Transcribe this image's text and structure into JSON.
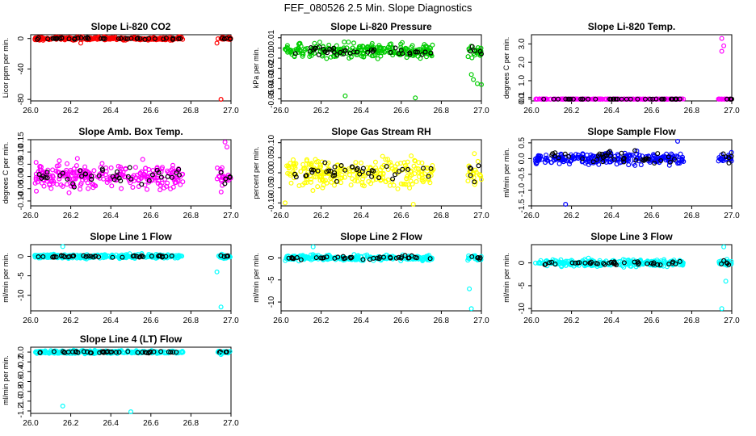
{
  "figure_title": "FEF_080526  2.5 Min. Slope Diagnostics",
  "chart_data": [
    {
      "id": "co2",
      "type": "scatter",
      "title": "Slope Li-820 CO2",
      "ylabel": "Licor ppm per min.",
      "xlim": [
        26.0,
        27.0
      ],
      "ylim": [
        -82,
        5
      ],
      "yticks": [
        0,
        -40,
        -80
      ],
      "ytick_labels": [
        "0",
        "-40",
        "-80"
      ],
      "xticks": [
        26.0,
        26.2,
        26.4,
        26.6,
        26.8,
        27.0
      ],
      "xtick_labels": [
        "26.0",
        "26.2",
        "26.4",
        "26.6",
        "26.8",
        "27.0"
      ],
      "color": "#ff0000",
      "center": 0,
      "spread": 2,
      "outliers": [
        [
          26.95,
          -80
        ],
        [
          26.93,
          -6
        ],
        [
          26.25,
          -6
        ]
      ],
      "black_center": 0,
      "black_spread": 1
    },
    {
      "id": "pressure",
      "type": "scatter",
      "title": "Slope Li-820 Pressure",
      "ylabel": "kPa per min.",
      "xlim": [
        26.0,
        27.0
      ],
      "ylim": [
        -0.052,
        0.013
      ],
      "yticks": [
        0.01,
        0,
        -0.01,
        -0.02,
        -0.03,
        -0.04,
        -0.05
      ],
      "ytick_labels": [
        "0.01",
        "0",
        "-0.01",
        "-0.02",
        "-0.03",
        "-0.04",
        "-0.05"
      ],
      "xticks": [
        26.0,
        26.2,
        26.4,
        26.6,
        26.8,
        27.0
      ],
      "xtick_labels": [
        "26.0",
        "26.2",
        "26.4",
        "26.6",
        "26.8",
        "27.0"
      ],
      "color": "#00cc00",
      "center": -0.003,
      "spread": 0.007,
      "outliers": [
        [
          26.32,
          -0.047
        ],
        [
          26.67,
          -0.049
        ],
        [
          26.95,
          -0.026
        ],
        [
          26.98,
          -0.035
        ],
        [
          27.0,
          -0.036
        ],
        [
          26.96,
          -0.031
        ]
      ],
      "black_center": -0.003,
      "black_spread": 0.004
    },
    {
      "id": "temp",
      "type": "scatter",
      "title": "Slope Li-820 Temp.",
      "ylabel": "degrees C per min.",
      "xlim": [
        26.0,
        27.0
      ],
      "ylim": [
        -0.1,
        3.5
      ],
      "yticks": [
        0.0,
        0.1,
        1.0,
        2.0,
        3.0
      ],
      "ytick_labels": [
        "0.0",
        "0.1",
        "1.0",
        "2.0",
        "3.0"
      ],
      "xticks": [
        26.0,
        26.2,
        26.4,
        26.6,
        26.8,
        27.0
      ],
      "xtick_labels": [
        "26.0",
        "26.2",
        "26.4",
        "26.6",
        "26.8",
        "27.0"
      ],
      "color": "#ff00ff",
      "center": 0,
      "spread": 0.01,
      "outliers": [
        [
          26.95,
          3.3
        ],
        [
          26.96,
          2.9
        ],
        [
          26.95,
          2.6
        ]
      ],
      "black_center": 0,
      "black_spread": 0.005
    },
    {
      "id": "ambbox",
      "type": "scatter",
      "title": "Slope Amb. Box Temp.",
      "ylabel": "degrees C per min.",
      "xlim": [
        26.0,
        27.0
      ],
      "ylim": [
        -0.12,
        0.15
      ],
      "yticks": [
        0.15,
        0.1,
        0.05,
        0,
        -0.05,
        -0.1
      ],
      "ytick_labels": [
        "0.15",
        "0.10",
        "0.05",
        "0.00",
        "-0.05",
        "-0.10"
      ],
      "xticks": [
        26.0,
        26.2,
        26.4,
        26.6,
        26.8,
        27.0
      ],
      "xtick_labels": [
        "26.0",
        "26.2",
        "26.4",
        "26.6",
        "26.8",
        "27.0"
      ],
      "color": "#ff00ff",
      "center": 0,
      "spread": 0.05,
      "outliers": [
        [
          26.97,
          0.14
        ],
        [
          26.98,
          0.12
        ]
      ],
      "black_center": 0,
      "black_spread": 0.035
    },
    {
      "id": "rh",
      "type": "scatter",
      "title": "Slope Gas Stream RH",
      "ylabel": "percent per min.",
      "xlim": [
        26.0,
        27.0
      ],
      "ylim": [
        -0.11,
        0.11
      ],
      "yticks": [
        0.1,
        0.05,
        0,
        -0.05,
        -0.1
      ],
      "ytick_labels": [
        "0.10",
        "0.05",
        "0.00",
        "-0.05",
        "-0.10"
      ],
      "xticks": [
        26.0,
        26.2,
        26.4,
        26.6,
        26.8,
        27.0
      ],
      "xtick_labels": [
        "26.0",
        "26.2",
        "26.4",
        "26.6",
        "26.8",
        "27.0"
      ],
      "color": "#ffff00",
      "center": 0,
      "spread": 0.045,
      "outliers": [
        [
          26.02,
          -0.1
        ],
        [
          26.66,
          -0.11
        ]
      ],
      "black_center": 0,
      "black_spread": 0.03
    },
    {
      "id": "sample",
      "type": "scatter",
      "title": "Slope Sample Flow",
      "ylabel": "ml/min per min.",
      "xlim": [
        26.0,
        27.0
      ],
      "ylim": [
        -1.5,
        0.6
      ],
      "yticks": [
        0.5,
        0,
        -0.5,
        -1,
        -1.5
      ],
      "ytick_labels": [
        "0.5",
        "0.0",
        "-0.5",
        "-1.0",
        "-1.5"
      ],
      "xticks": [
        26.0,
        26.2,
        26.4,
        26.6,
        26.8,
        27.0
      ],
      "xtick_labels": [
        "26.0",
        "26.2",
        "26.4",
        "26.6",
        "26.8",
        "27.0"
      ],
      "color": "#0000ff",
      "center": 0,
      "spread": 0.17,
      "outliers": [
        [
          26.17,
          -1.45
        ],
        [
          26.73,
          0.55
        ]
      ],
      "black_center": 0.05,
      "black_spread": 0.2
    },
    {
      "id": "line1",
      "type": "scatter",
      "title": "Slope Line 1 Flow",
      "ylabel": "ml/min per min.",
      "xlim": [
        26.0,
        27.0
      ],
      "ylim": [
        -14,
        3
      ],
      "yticks": [
        0,
        -5,
        -10
      ],
      "ytick_labels": [
        "0",
        "-5",
        "-10"
      ],
      "xticks": [
        26.0,
        26.2,
        26.4,
        26.6,
        26.8,
        27.0
      ],
      "xtick_labels": [
        "26.0",
        "26.2",
        "26.4",
        "26.6",
        "26.8",
        "27.0"
      ],
      "color": "#00ffff",
      "center": 0,
      "spread": 0.5,
      "outliers": [
        [
          26.95,
          -13
        ],
        [
          26.93,
          -4
        ],
        [
          26.16,
          2.5
        ]
      ],
      "black_center": 0,
      "black_spread": 0.3
    },
    {
      "id": "line2",
      "type": "scatter",
      "title": "Slope Line 2 Flow",
      "ylabel": "ml/min per min.",
      "xlim": [
        26.0,
        27.0
      ],
      "ylim": [
        -12,
        3
      ],
      "yticks": [
        0,
        -5,
        -10
      ],
      "ytick_labels": [
        "0",
        "-5",
        "-10"
      ],
      "xticks": [
        26.0,
        26.2,
        26.4,
        26.6,
        26.8,
        27.0
      ],
      "xtick_labels": [
        "26.0",
        "26.2",
        "26.4",
        "26.6",
        "26.8",
        "27.0"
      ],
      "color": "#00ffff",
      "center": 0,
      "spread": 0.6,
      "outliers": [
        [
          26.95,
          -11.5
        ],
        [
          26.94,
          -7
        ],
        [
          26.16,
          2.5
        ]
      ],
      "black_center": 0,
      "black_spread": 0.4
    },
    {
      "id": "line3",
      "type": "scatter",
      "title": "Slope Line 3 Flow",
      "ylabel": "ml/min per min.",
      "xlim": [
        26.0,
        27.0
      ],
      "ylim": [
        -10.5,
        4
      ],
      "yticks": [
        0,
        -5,
        -10
      ],
      "ytick_labels": [
        "0",
        "-5",
        "-10"
      ],
      "xticks": [
        26.0,
        26.2,
        26.4,
        26.6,
        26.8,
        27.0
      ],
      "xtick_labels": [
        "26.0",
        "26.2",
        "26.4",
        "26.6",
        "26.8",
        "27.0"
      ],
      "color": "#00ffff",
      "center": 0,
      "spread": 0.7,
      "outliers": [
        [
          26.95,
          -10
        ],
        [
          26.97,
          -4
        ],
        [
          26.96,
          3.5
        ]
      ],
      "black_center": 0,
      "black_spread": 0.5
    },
    {
      "id": "line4",
      "type": "scatter",
      "title": "Slope Line 4 (LT) Flow",
      "ylabel": "ml/min per min.",
      "xlim": [
        26.0,
        27.0
      ],
      "ylim": [
        -1.25,
        0.1
      ],
      "yticks": [
        0,
        -0.2,
        -0.4,
        -0.6,
        -0.8,
        -1.0,
        -1.2
      ],
      "ytick_labels": [
        "0.0",
        "-0.2",
        "-0.4",
        "-0.6",
        "-0.8",
        "-1.0",
        "-1.2"
      ],
      "xticks": [
        26.0,
        26.2,
        26.4,
        26.6,
        26.8,
        27.0
      ],
      "xtick_labels": [
        "26.0",
        "26.2",
        "26.4",
        "26.6",
        "26.8",
        "27.0"
      ],
      "color": "#00ffff",
      "center": 0,
      "spread": 0.03,
      "outliers": [
        [
          26.16,
          -1.1
        ],
        [
          26.5,
          -1.22
        ],
        [
          26.95,
          -0.05
        ]
      ],
      "black_center": 0,
      "black_spread": 0.02
    }
  ]
}
